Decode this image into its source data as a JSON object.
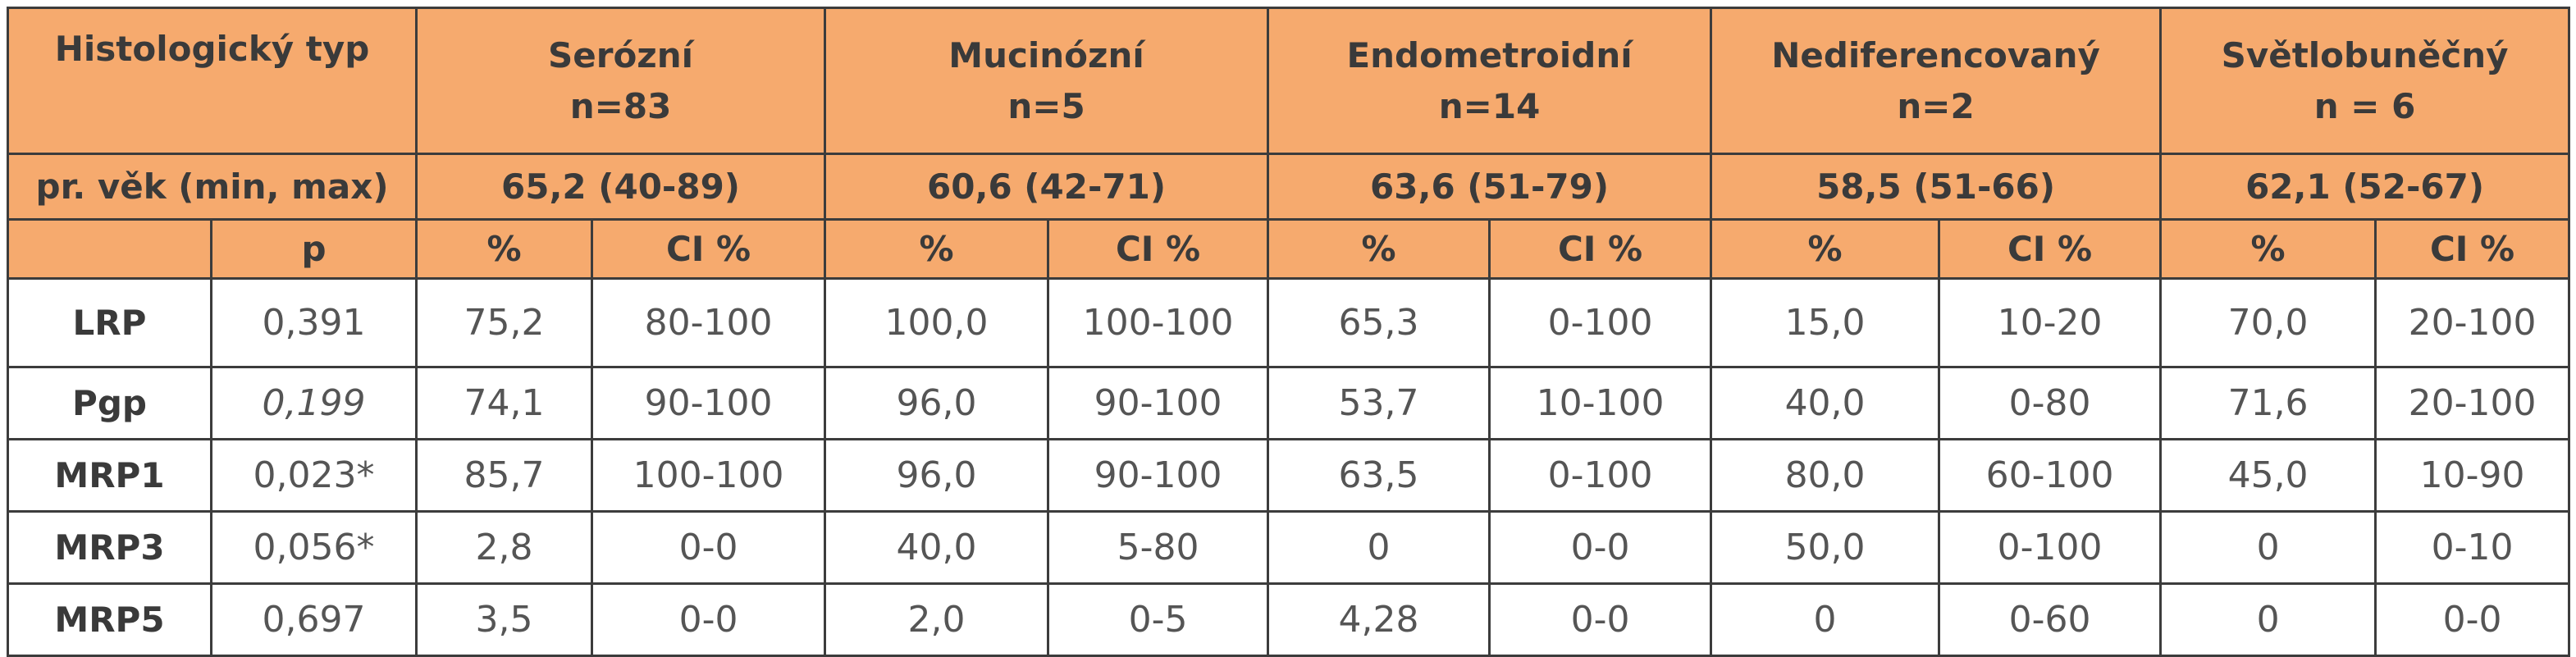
{
  "table": {
    "header": {
      "type_label": "Histologický typ",
      "groups": [
        {
          "name": "Serózní",
          "n": "n=83",
          "age": "65,2 (40-89)"
        },
        {
          "name": "Mucinózní",
          "n": "n=5",
          "age": "60,6 (42-71)"
        },
        {
          "name": "Endometroidní",
          "n": "n=14",
          "age": "63,6 (51-79)"
        },
        {
          "name": "Nediferencovaný",
          "n": "n=2",
          "age": "58,5 (51-66)"
        },
        {
          "name": "Světlobuněčný",
          "n": "n = 6",
          "age": "62,1 (52-67)"
        }
      ],
      "age_label": "pr. věk (min, max)",
      "p_label": "p",
      "pct_label": "%",
      "ci_label": "CI %"
    },
    "rows": [
      {
        "marker": "LRP",
        "p": "0,391",
        "cells": [
          "75,2",
          "80-100",
          "100,0",
          "100-100",
          "65,3",
          "0-100",
          "15,0",
          "10-20",
          "70,0",
          "20-100"
        ]
      },
      {
        "marker": "Pgp",
        "p": "0,199",
        "cells": [
          "74,1",
          "90-100",
          "96,0",
          "90-100",
          "53,7",
          "10-100",
          "40,0",
          "0-80",
          "71,6",
          "20-100"
        ]
      },
      {
        "marker": "MRP1",
        "p": "0,023*",
        "cells": [
          "85,7",
          "100-100",
          "96,0",
          "90-100",
          "63,5",
          "0-100",
          "80,0",
          "60-100",
          "45,0",
          "10-90"
        ]
      },
      {
        "marker": "MRP3",
        "p": "0,056*",
        "cells": [
          "2,8",
          "0-0",
          "40,0",
          "5-80",
          "0",
          "0-0",
          "50,0",
          "0-100",
          "0",
          "0-10"
        ]
      },
      {
        "marker": "MRP5",
        "p": "0,697",
        "cells": [
          "3,5",
          "0-0",
          "2,0",
          "0-5",
          "4,28",
          "0-0",
          "0",
          "0-60",
          "0",
          "0-0"
        ]
      }
    ]
  }
}
